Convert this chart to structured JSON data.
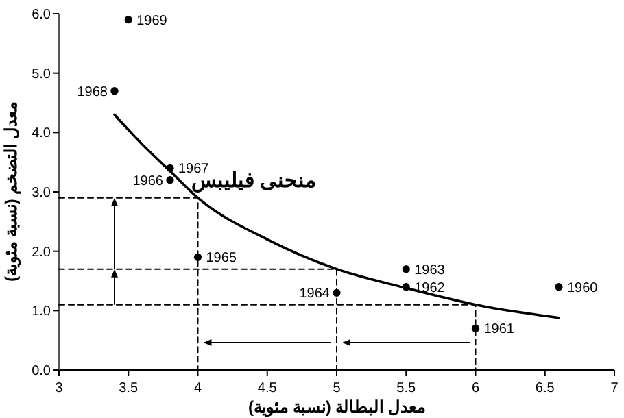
{
  "chart_data": {
    "type": "scatter",
    "xlabel": "معدل البطالة (نسبة مئوية)",
    "ylabel": "معدل التضخم (نسبة مئوية)",
    "xlim": [
      3,
      7
    ],
    "xticks": [
      3,
      3.5,
      4,
      4.5,
      5,
      5.5,
      6,
      6.5,
      7
    ],
    "ylim": [
      0,
      6
    ],
    "yticks": [
      {
        "value": 0,
        "label": "0.0"
      },
      {
        "value": 1,
        "label": "1.0"
      },
      {
        "value": 2,
        "label": "2.0"
      },
      {
        "value": 3,
        "label": "3.0"
      },
      {
        "value": 4,
        "label": "4.0"
      },
      {
        "value": 5,
        "label": "5.0"
      },
      {
        "value": 6,
        "label": "6.0"
      }
    ],
    "annotations": [
      {
        "text": "1960",
        "x": 6.6,
        "y": 1.4
      },
      {
        "text": "1961",
        "x": 6.0,
        "y": 0.7
      },
      {
        "text": "1962",
        "x": 5.5,
        "y": 1.4
      },
      {
        "text": "1963",
        "x": 5.5,
        "y": 1.7
      },
      {
        "text": "1964",
        "x": 5.0,
        "y": 1.3
      },
      {
        "text": "1965",
        "x": 4.0,
        "y": 1.9
      },
      {
        "text": "1966",
        "x": 3.8,
        "y": 3.2
      },
      {
        "text": "1967",
        "x": 3.8,
        "y": 3.4
      },
      {
        "text": "1968",
        "x": 3.4,
        "y": 4.7
      },
      {
        "text": "1969",
        "x": 3.5,
        "y": 5.9
      }
    ],
    "series": [
      {
        "marker": "circle",
        "color": "#000000",
        "x": [
          6.6,
          6.0,
          5.5,
          5.5,
          5.0,
          4.0,
          3.8,
          3.8,
          3.4,
          3.5
        ],
        "values": [
          1.4,
          0.7,
          1.4,
          1.7,
          1.3,
          1.9,
          3.2,
          3.4,
          4.7,
          5.9
        ]
      },
      {
        "type": "line",
        "name": "منحنى فيليبس",
        "color": "#000000",
        "line_style": "solid",
        "x": [
          3.4,
          3.6,
          3.8,
          4.0,
          4.5,
          5.0,
          5.5,
          6.0,
          6.6
        ],
        "values": [
          4.3,
          3.8,
          3.35,
          2.9,
          2.2,
          1.7,
          1.38,
          1.1,
          0.88
        ]
      },
      {
        "type": "line",
        "color": "#000000",
        "line_style": "dashed",
        "x": [
          3,
          4,
          4
        ],
        "values": [
          2.9,
          2.9,
          0
        ]
      },
      {
        "type": "line",
        "color": "#000000",
        "line_style": "dashed",
        "x": [
          3,
          5,
          5
        ],
        "values": [
          1.7,
          1.7,
          0
        ]
      },
      {
        "type": "line",
        "color": "#000000",
        "line_style": "dashed",
        "x": [
          3,
          6,
          6
        ],
        "values": [
          1.1,
          1.1,
          0
        ]
      }
    ]
  }
}
